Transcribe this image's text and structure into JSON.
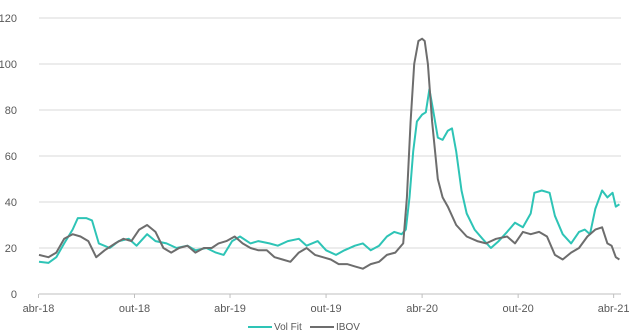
{
  "chart_data": {
    "type": "line",
    "title": "",
    "xlabel": "",
    "ylabel": "",
    "ylim": [
      0,
      120
    ],
    "yticks": [
      0,
      20,
      40,
      60,
      80,
      100,
      120
    ],
    "ytick_labels": [
      "0",
      "20",
      "40",
      "60",
      "80",
      "100",
      "120"
    ],
    "xlim": [
      "2018-04-02",
      "2021-04-15"
    ],
    "xticks": [
      "2018-04-01",
      "2018-10-01",
      "2019-04-01",
      "2019-10-01",
      "2020-04-01",
      "2020-10-01",
      "2021-04-01"
    ],
    "xtick_labels": [
      "abr-18",
      "out-18",
      "abr-19",
      "out-19",
      "abr-20",
      "out-20",
      "abr-21"
    ],
    "grid": "horizontal",
    "legend_position": "bottom",
    "series": [
      {
        "name": "Vol Fit",
        "color": "#2ec4b6",
        "points": [
          [
            "2018-04-02",
            14
          ],
          [
            "2018-04-20",
            13.5
          ],
          [
            "2018-05-05",
            16
          ],
          [
            "2018-05-20",
            22
          ],
          [
            "2018-06-05",
            28
          ],
          [
            "2018-06-15",
            33
          ],
          [
            "2018-07-01",
            33
          ],
          [
            "2018-07-12",
            32
          ],
          [
            "2018-07-25",
            22
          ],
          [
            "2018-08-15",
            20
          ],
          [
            "2018-09-01",
            23
          ],
          [
            "2018-09-20",
            24
          ],
          [
            "2018-10-05",
            21
          ],
          [
            "2018-10-25",
            26
          ],
          [
            "2018-11-10",
            23
          ],
          [
            "2018-12-01",
            22
          ],
          [
            "2018-12-20",
            20
          ],
          [
            "2019-01-10",
            21
          ],
          [
            "2019-01-25",
            19
          ],
          [
            "2019-02-15",
            20
          ],
          [
            "2019-03-05",
            18
          ],
          [
            "2019-03-20",
            17
          ],
          [
            "2019-04-05",
            23
          ],
          [
            "2019-04-20",
            25
          ],
          [
            "2019-05-10",
            22
          ],
          [
            "2019-05-25",
            23
          ],
          [
            "2019-06-15",
            22
          ],
          [
            "2019-07-01",
            21
          ],
          [
            "2019-07-20",
            23
          ],
          [
            "2019-08-10",
            24
          ],
          [
            "2019-08-25",
            21
          ],
          [
            "2019-09-15",
            23
          ],
          [
            "2019-10-01",
            19
          ],
          [
            "2019-10-20",
            17
          ],
          [
            "2019-11-05",
            19
          ],
          [
            "2019-11-25",
            21
          ],
          [
            "2019-12-10",
            22
          ],
          [
            "2019-12-25",
            19
          ],
          [
            "2020-01-10",
            21
          ],
          [
            "2020-01-25",
            25
          ],
          [
            "2020-02-08",
            27
          ],
          [
            "2020-02-22",
            26
          ],
          [
            "2020-03-01",
            28
          ],
          [
            "2020-03-08",
            42
          ],
          [
            "2020-03-15",
            62
          ],
          [
            "2020-03-22",
            75
          ],
          [
            "2020-04-01",
            78
          ],
          [
            "2020-04-08",
            79
          ],
          [
            "2020-04-15",
            89
          ],
          [
            "2020-04-22",
            80
          ],
          [
            "2020-05-01",
            68
          ],
          [
            "2020-05-10",
            67
          ],
          [
            "2020-05-20",
            71
          ],
          [
            "2020-05-28",
            72
          ],
          [
            "2020-06-05",
            62
          ],
          [
            "2020-06-15",
            45
          ],
          [
            "2020-06-25",
            35
          ],
          [
            "2020-07-10",
            28
          ],
          [
            "2020-07-25",
            24
          ],
          [
            "2020-08-10",
            20
          ],
          [
            "2020-08-25",
            23
          ],
          [
            "2020-09-10",
            27
          ],
          [
            "2020-09-25",
            31
          ],
          [
            "2020-10-10",
            29
          ],
          [
            "2020-10-25",
            35
          ],
          [
            "2020-11-01",
            44
          ],
          [
            "2020-11-15",
            45
          ],
          [
            "2020-11-30",
            44
          ],
          [
            "2020-12-10",
            34
          ],
          [
            "2020-12-25",
            26
          ],
          [
            "2021-01-10",
            22
          ],
          [
            "2021-01-25",
            27
          ],
          [
            "2021-02-05",
            28
          ],
          [
            "2021-02-15",
            26
          ],
          [
            "2021-02-25",
            37
          ],
          [
            "2021-03-10",
            45
          ],
          [
            "2021-03-20",
            42
          ],
          [
            "2021-03-30",
            44
          ],
          [
            "2021-04-05",
            38
          ],
          [
            "2021-04-12",
            39
          ]
        ]
      },
      {
        "name": "IBOV",
        "color": "#6d6d6d",
        "points": [
          [
            "2018-04-02",
            17
          ],
          [
            "2018-04-20",
            16
          ],
          [
            "2018-05-05",
            18
          ],
          [
            "2018-05-20",
            24
          ],
          [
            "2018-06-05",
            26
          ],
          [
            "2018-06-20",
            25
          ],
          [
            "2018-07-05",
            23
          ],
          [
            "2018-07-20",
            16
          ],
          [
            "2018-08-05",
            19
          ],
          [
            "2018-08-25",
            22
          ],
          [
            "2018-09-10",
            24
          ],
          [
            "2018-09-25",
            23
          ],
          [
            "2018-10-10",
            28
          ],
          [
            "2018-10-25",
            30
          ],
          [
            "2018-11-10",
            27
          ],
          [
            "2018-11-25",
            20
          ],
          [
            "2018-12-10",
            18
          ],
          [
            "2018-12-25",
            20
          ],
          [
            "2019-01-10",
            21
          ],
          [
            "2019-01-25",
            18
          ],
          [
            "2019-02-10",
            20
          ],
          [
            "2019-02-25",
            20
          ],
          [
            "2019-03-10",
            22
          ],
          [
            "2019-03-25",
            23
          ],
          [
            "2019-04-10",
            25
          ],
          [
            "2019-04-25",
            22
          ],
          [
            "2019-05-10",
            20
          ],
          [
            "2019-05-25",
            19
          ],
          [
            "2019-06-10",
            19
          ],
          [
            "2019-06-25",
            16
          ],
          [
            "2019-07-10",
            15
          ],
          [
            "2019-07-25",
            14
          ],
          [
            "2019-08-10",
            18
          ],
          [
            "2019-08-25",
            20
          ],
          [
            "2019-09-10",
            17
          ],
          [
            "2019-09-25",
            16
          ],
          [
            "2019-10-10",
            15
          ],
          [
            "2019-10-25",
            13
          ],
          [
            "2019-11-10",
            13
          ],
          [
            "2019-11-25",
            12
          ],
          [
            "2019-12-10",
            11
          ],
          [
            "2019-12-25",
            13
          ],
          [
            "2020-01-10",
            14
          ],
          [
            "2020-01-25",
            17
          ],
          [
            "2020-02-10",
            18
          ],
          [
            "2020-02-25",
            22
          ],
          [
            "2020-03-03",
            42
          ],
          [
            "2020-03-10",
            75
          ],
          [
            "2020-03-17",
            100
          ],
          [
            "2020-03-25",
            110
          ],
          [
            "2020-04-01",
            111
          ],
          [
            "2020-04-06",
            110
          ],
          [
            "2020-04-12",
            100
          ],
          [
            "2020-04-20",
            75
          ],
          [
            "2020-05-01",
            50
          ],
          [
            "2020-05-10",
            42
          ],
          [
            "2020-05-20",
            38
          ],
          [
            "2020-06-05",
            30
          ],
          [
            "2020-06-25",
            25
          ],
          [
            "2020-07-15",
            23
          ],
          [
            "2020-08-01",
            22
          ],
          [
            "2020-08-20",
            24
          ],
          [
            "2020-09-10",
            25
          ],
          [
            "2020-09-25",
            22
          ],
          [
            "2020-10-10",
            27
          ],
          [
            "2020-10-25",
            26
          ],
          [
            "2020-11-10",
            27
          ],
          [
            "2020-11-25",
            25
          ],
          [
            "2020-12-10",
            17
          ],
          [
            "2020-12-25",
            15
          ],
          [
            "2021-01-10",
            18
          ],
          [
            "2021-01-25",
            20
          ],
          [
            "2021-02-10",
            25
          ],
          [
            "2021-02-25",
            28
          ],
          [
            "2021-03-10",
            29
          ],
          [
            "2021-03-20",
            22
          ],
          [
            "2021-03-28",
            21
          ],
          [
            "2021-04-05",
            16
          ],
          [
            "2021-04-12",
            15
          ]
        ]
      }
    ]
  }
}
